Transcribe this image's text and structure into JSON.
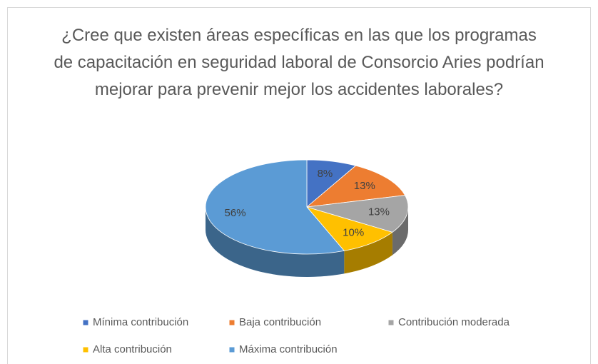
{
  "chart_data": {
    "type": "pie3d",
    "title": "¿Cree que existen áreas específicas en las que los programas de capacitación en seguridad laboral de Consorcio Aries podrían mejorar para prevenir mejor los accidentes laborales?",
    "categories": [
      "Mínima contribución",
      "Baja contribución",
      "Contribución moderada",
      "Alta contribución",
      "Máxima contribución"
    ],
    "values": [
      8,
      13,
      13,
      10,
      56
    ],
    "value_labels": [
      "8%",
      "13%",
      "13%",
      "10%",
      "56%"
    ],
    "colors": [
      "#4472c4",
      "#ed7d31",
      "#a5a5a5",
      "#ffc000",
      "#5b9bd5"
    ],
    "legend": "bottom"
  }
}
